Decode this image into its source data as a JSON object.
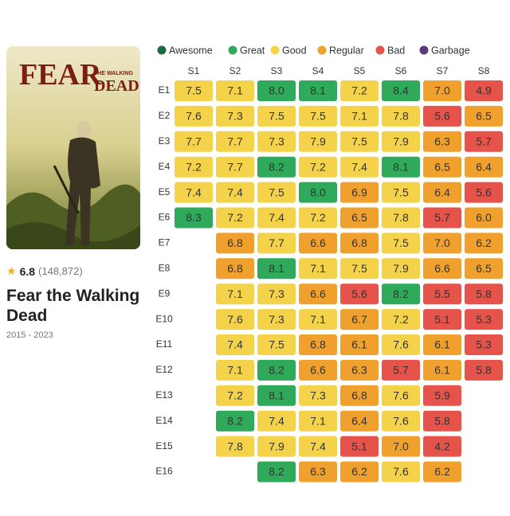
{
  "poster": {
    "logo": [
      "FEAR",
      "THE WALKING",
      "DEAD"
    ]
  },
  "show": {
    "rating": "6.8",
    "votes": "(148,872)",
    "title": "Fear the Walking Dead",
    "years": "2015 - 2023"
  },
  "heatmap": {
    "legend": [
      {
        "name": "Awesome",
        "color": "#1e6b3c"
      },
      {
        "name": "Great",
        "color": "#2faa5a"
      },
      {
        "name": "Good",
        "color": "#f4d24a"
      },
      {
        "name": "Regular",
        "color": "#f0a02c"
      },
      {
        "name": "Bad",
        "color": "#e5534b"
      },
      {
        "name": "Garbage",
        "color": "#5b3a7a"
      }
    ],
    "seasons": [
      "S1",
      "S2",
      "S3",
      "S4",
      "S5",
      "S6",
      "S7",
      "S8"
    ],
    "episodes": [
      "E1",
      "E2",
      "E3",
      "E4",
      "E5",
      "E6",
      "E7",
      "E8",
      "E9",
      "E10",
      "E11",
      "E12",
      "E13",
      "E14",
      "E15",
      "E16"
    ],
    "ratings": [
      [
        "7.5",
        "7.1",
        "8.0",
        "8.1",
        "7.2",
        "8.4",
        "7.0",
        "4.9"
      ],
      [
        "7.6",
        "7.3",
        "7.5",
        "7.5",
        "7.1",
        "7.8",
        "5.6",
        "6.5"
      ],
      [
        "7.7",
        "7.7",
        "7.3",
        "7.9",
        "7.5",
        "7.9",
        "6.3",
        "5.7"
      ],
      [
        "7.2",
        "7.7",
        "8.2",
        "7.2",
        "7.4",
        "8.1",
        "6.5",
        "6.4"
      ],
      [
        "7.4",
        "7.4",
        "7.5",
        "8.0",
        "6.9",
        "7.5",
        "6.4",
        "5.6"
      ],
      [
        "8.3",
        "7.2",
        "7.4",
        "7.2",
        "6.5",
        "7.8",
        "5.7",
        "6.0"
      ],
      [
        null,
        "6.8",
        "7.7",
        "6.6",
        "6.8",
        "7.5",
        "7.0",
        "6.2"
      ],
      [
        null,
        "6.8",
        "8.1",
        "7.1",
        "7.5",
        "7.9",
        "6.6",
        "6.5"
      ],
      [
        null,
        "7.1",
        "7.3",
        "6.6",
        "5.6",
        "8.2",
        "5.5",
        "5.8"
      ],
      [
        null,
        "7.6",
        "7.3",
        "7.1",
        "6.7",
        "7.2",
        "5.1",
        "5.3"
      ],
      [
        null,
        "7.4",
        "7.5",
        "6.8",
        "6.1",
        "7.6",
        "6.1",
        "5.3"
      ],
      [
        null,
        "7.1",
        "8.2",
        "6.6",
        "6.3",
        "5.7",
        "6.1",
        "5.8"
      ],
      [
        null,
        "7.2",
        "8.1",
        "7.3",
        "6.8",
        "7.6",
        "5.9",
        null
      ],
      [
        null,
        "8.2",
        "7.4",
        "7.1",
        "6.4",
        "7.6",
        "5.8",
        null
      ],
      [
        null,
        "7.8",
        "7.9",
        "7.4",
        "5.1",
        "7.0",
        "4.2",
        null
      ],
      [
        null,
        null,
        "8.2",
        "6.3",
        "6.2",
        "7.6",
        "6.2",
        null
      ]
    ]
  }
}
